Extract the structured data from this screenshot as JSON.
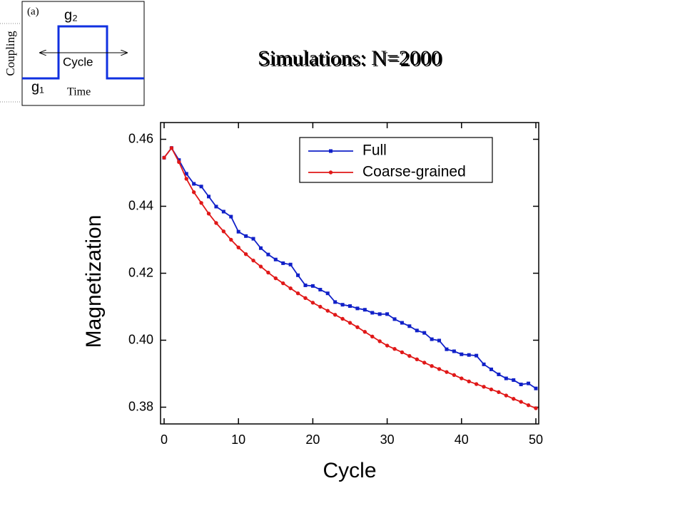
{
  "chart_data": {
    "type": "line",
    "title": "Simulations: N=2000",
    "xlabel": "Cycle",
    "ylabel": "Magnetization",
    "x": [
      0,
      1,
      2,
      3,
      4,
      5,
      6,
      7,
      8,
      9,
      10,
      11,
      12,
      13,
      14,
      15,
      16,
      17,
      18,
      19,
      20,
      21,
      22,
      23,
      24,
      25,
      26,
      27,
      28,
      29,
      30,
      31,
      32,
      33,
      34,
      35,
      36,
      37,
      38,
      39,
      40,
      41,
      42,
      43,
      44,
      45,
      46,
      47,
      48,
      49,
      50
    ],
    "series": [
      {
        "name": "Full",
        "color": "#1020c8",
        "marker": "square",
        "values": [
          0.4545,
          0.4574,
          0.4538,
          0.4497,
          0.4467,
          0.4459,
          0.4429,
          0.4399,
          0.4384,
          0.4369,
          0.4324,
          0.4311,
          0.4303,
          0.4275,
          0.4256,
          0.4241,
          0.423,
          0.4226,
          0.4194,
          0.4164,
          0.4162,
          0.4151,
          0.414,
          0.4114,
          0.4106,
          0.4102,
          0.4095,
          0.4091,
          0.4082,
          0.4078,
          0.4078,
          0.4063,
          0.4052,
          0.4042,
          0.4029,
          0.4022,
          0.4003,
          0.3999,
          0.3973,
          0.3967,
          0.3958,
          0.3956,
          0.3954,
          0.3928,
          0.3913,
          0.3898,
          0.3886,
          0.3881,
          0.3868,
          0.3871,
          0.3856
        ]
      },
      {
        "name": "Coarse-grained",
        "color": "#e01818",
        "marker": "circle",
        "values": [
          0.4545,
          0.4574,
          0.4532,
          0.4482,
          0.4442,
          0.441,
          0.4378,
          0.435,
          0.4325,
          0.43,
          0.4277,
          0.4257,
          0.4238,
          0.422,
          0.4202,
          0.4185,
          0.417,
          0.4155,
          0.414,
          0.4126,
          0.4112,
          0.41,
          0.4088,
          0.4076,
          0.4064,
          0.4052,
          0.4039,
          0.4025,
          0.4011,
          0.3997,
          0.3984,
          0.3974,
          0.3964,
          0.3953,
          0.3943,
          0.3933,
          0.3923,
          0.3914,
          0.3905,
          0.3896,
          0.3886,
          0.3877,
          0.3869,
          0.3861,
          0.3853,
          0.3845,
          0.3835,
          0.3825,
          0.3816,
          0.3806,
          0.3797
        ]
      }
    ],
    "xlim": [
      0,
      50
    ],
    "xticks": [
      0,
      10,
      20,
      30,
      40,
      50
    ],
    "ylim": [
      0.375,
      0.465
    ],
    "yticks": [
      0.38,
      {
        "value": 0.4,
        "label": "0.40"
      },
      0.42,
      0.44,
      0.46
    ],
    "grid": false,
    "legend": "upper right"
  },
  "inset": {
    "label": "(a)",
    "high": "g₂",
    "low": "g₁",
    "period": "Cycle",
    "xlabel": "Time",
    "ylabel": "Coupling"
  }
}
